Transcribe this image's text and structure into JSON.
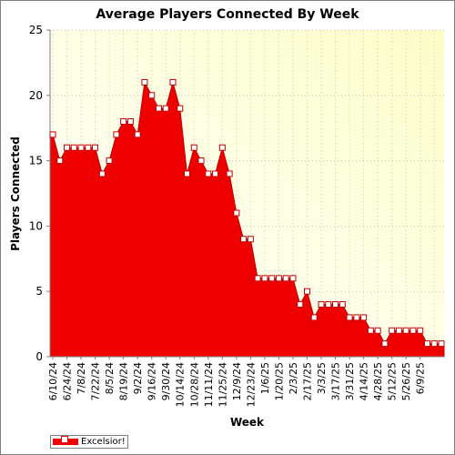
{
  "chart_data": {
    "type": "area",
    "title": "Average Players Connected By Week",
    "xlabel": "Week",
    "ylabel": "Players Connected",
    "ylim": [
      0,
      25
    ],
    "y_ticks": [
      0,
      5,
      10,
      15,
      20,
      25
    ],
    "grid": true,
    "legend_position": "bottom-left",
    "x_tick_labels": [
      "6/10/24",
      "6/24/24",
      "7/8/24",
      "7/22/24",
      "8/5/24",
      "8/19/24",
      "9/2/24",
      "9/16/24",
      "9/30/24",
      "10/14/24",
      "10/28/24",
      "11/11/24",
      "11/25/24",
      "12/9/24",
      "12/23/24",
      "1/6/25",
      "1/20/25",
      "2/3/25",
      "2/17/25",
      "3/3/25",
      "3/17/25",
      "3/31/25",
      "4/14/25",
      "4/28/25",
      "5/12/25",
      "5/26/25",
      "6/9/25"
    ],
    "series": [
      {
        "name": "Excelsior!",
        "color": "#ee0000",
        "values": [
          17,
          15,
          16,
          16,
          16,
          16,
          16,
          14,
          15,
          17,
          18,
          18,
          17,
          21,
          20,
          19,
          19,
          21,
          19,
          14,
          16,
          15,
          14,
          14,
          16,
          14,
          11,
          9,
          9,
          6,
          6,
          6,
          6,
          6,
          6,
          4,
          5,
          3,
          4,
          4,
          4,
          4,
          3,
          3,
          3,
          2,
          2,
          1,
          2,
          2,
          2,
          2,
          2,
          1,
          1,
          1
        ]
      }
    ]
  }
}
